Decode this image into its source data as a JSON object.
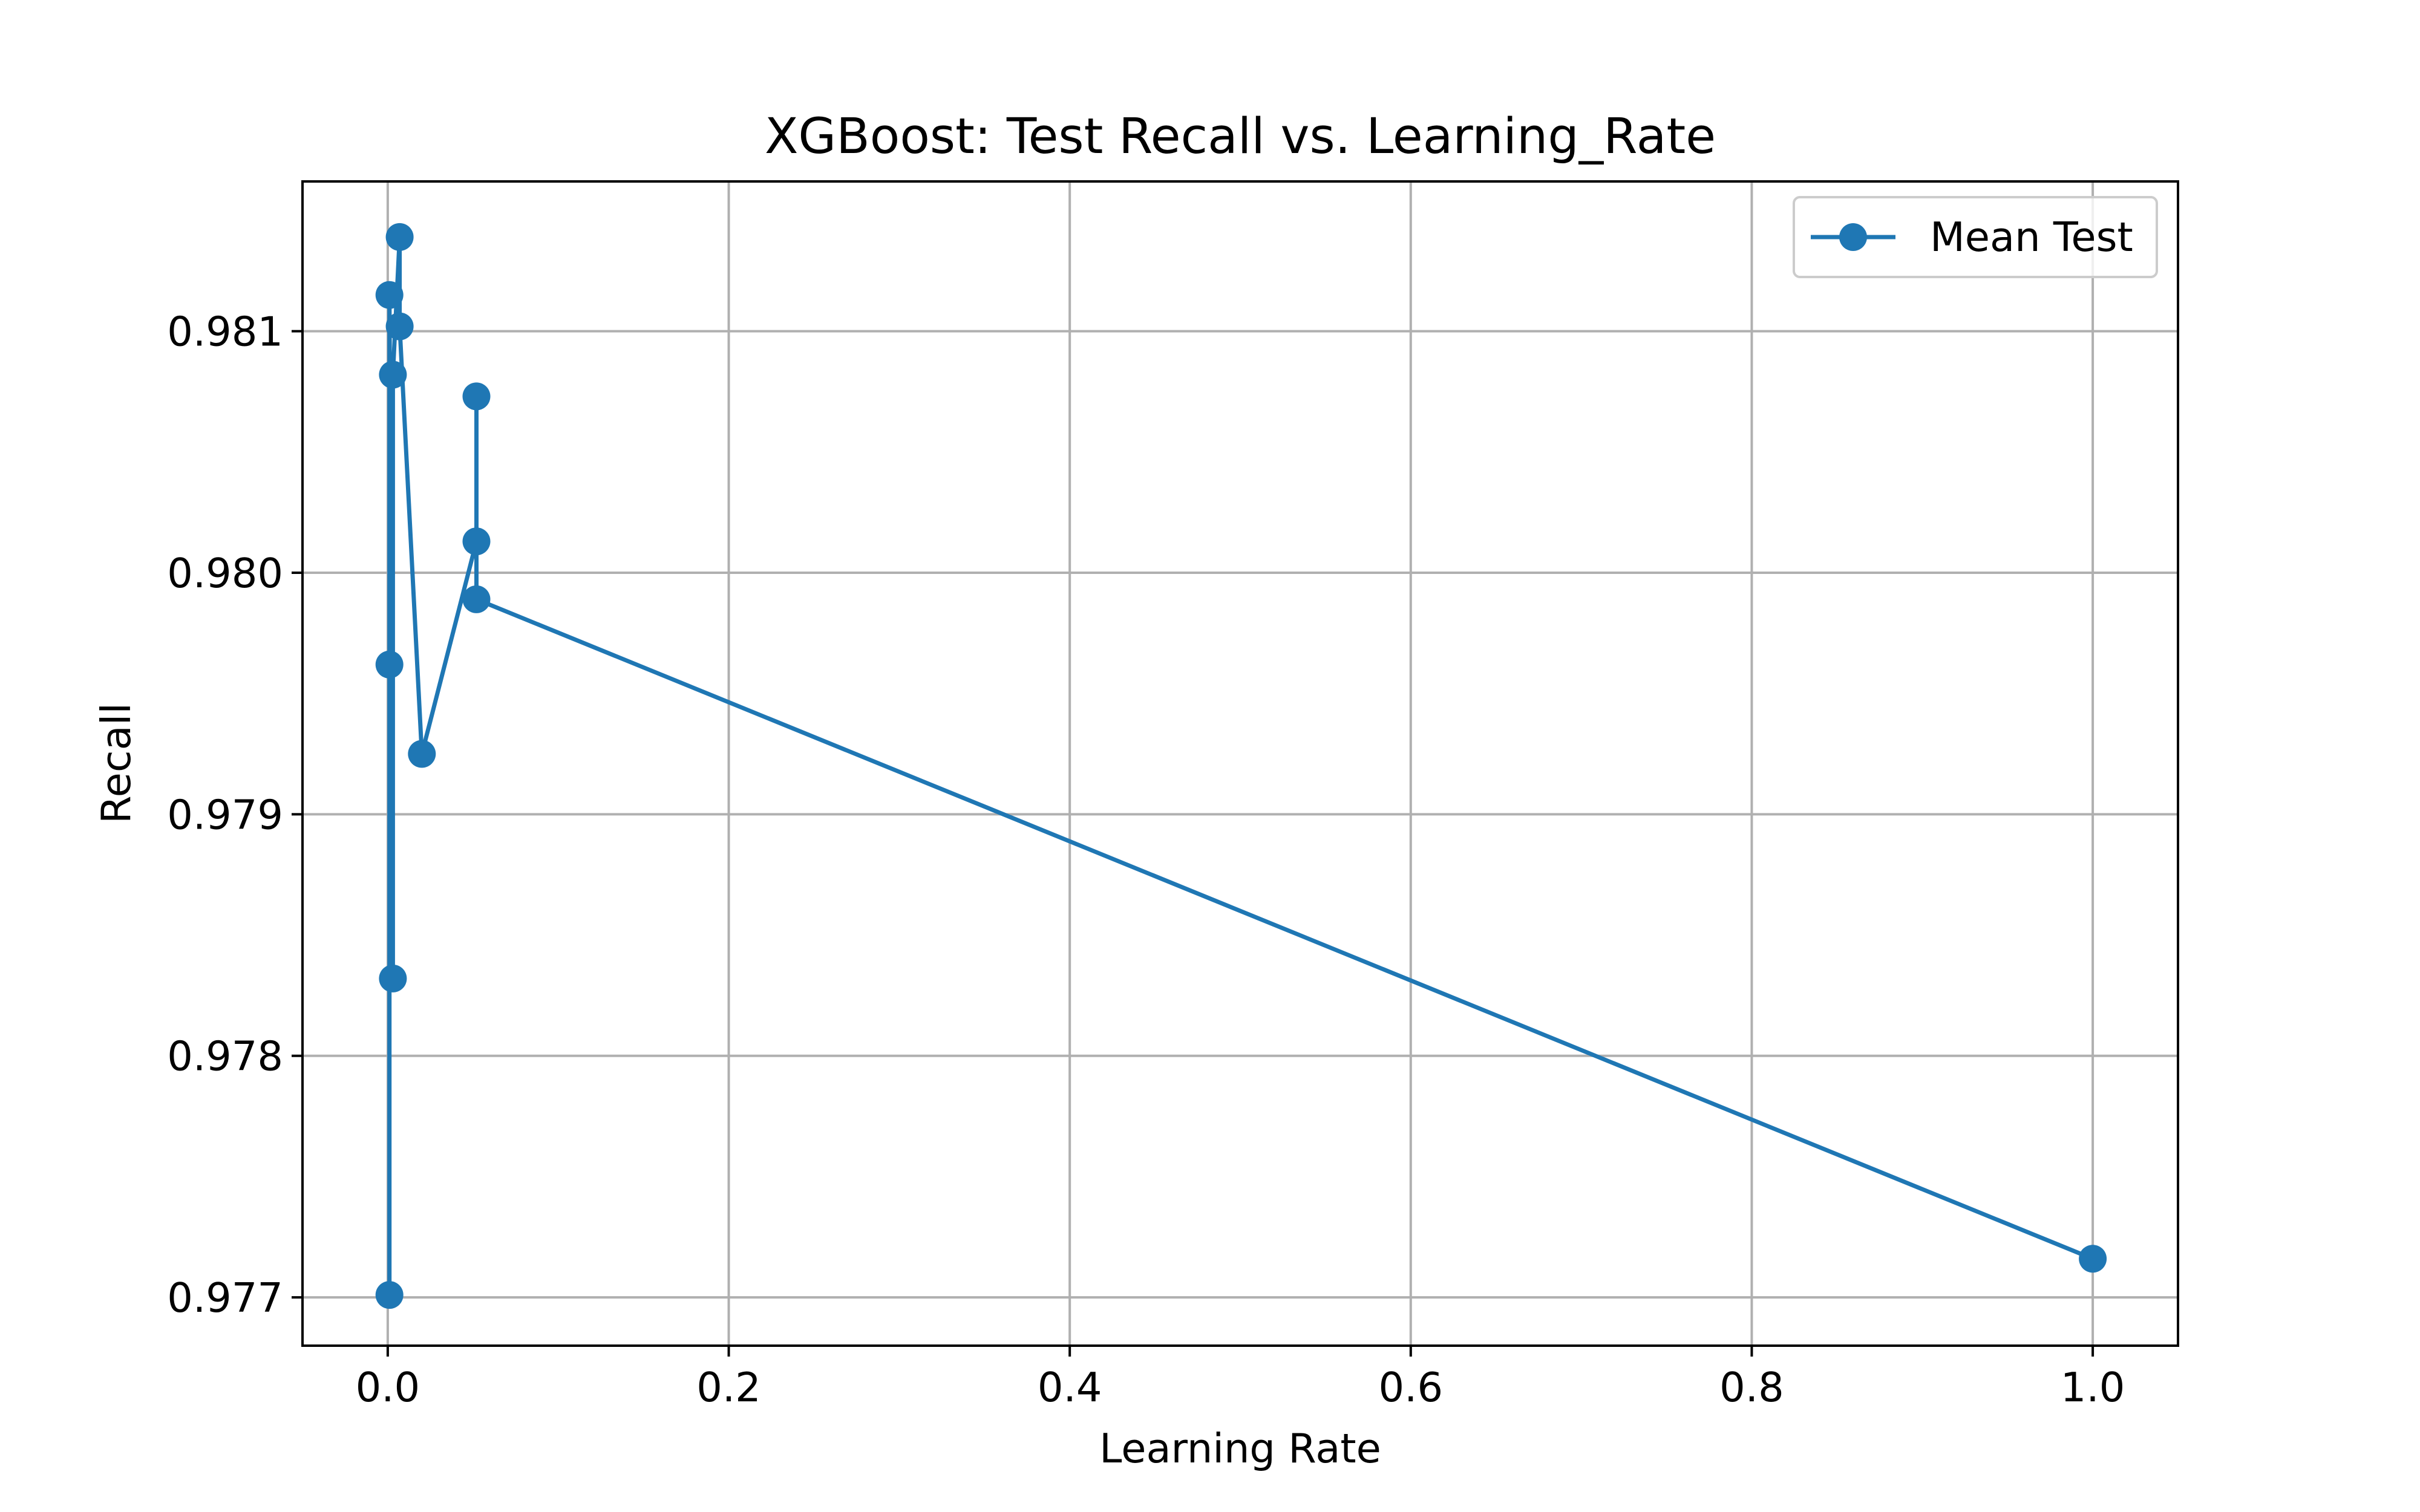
{
  "chart_data": {
    "type": "line",
    "title": "XGBoost: Test Recall vs. Learning_Rate",
    "xlabel": "Learning Rate",
    "ylabel": "Recall",
    "xlim": [
      -0.05,
      1.05
    ],
    "ylim": [
      0.9768,
      0.98162
    ],
    "xticks": [
      0.0,
      0.2,
      0.4,
      0.6,
      0.8,
      1.0
    ],
    "xtick_labels": [
      "0.0",
      "0.2",
      "0.4",
      "0.6",
      "0.8",
      "1.0"
    ],
    "yticks": [
      0.977,
      0.978,
      0.979,
      0.98,
      0.981
    ],
    "ytick_labels": [
      "0.977",
      "0.978",
      "0.979",
      "0.980",
      "0.981"
    ],
    "grid": true,
    "legend_position": "upper right",
    "series": [
      {
        "name": "Mean Test",
        "color": "#1f77b4",
        "marker": "circle",
        "x": [
          0.001,
          0.001,
          0.001,
          0.003,
          0.003,
          0.007,
          0.007,
          0.02,
          0.052,
          0.052,
          0.052,
          1.0
        ],
        "y": [
          0.97701,
          0.97962,
          0.98115,
          0.97832,
          0.98082,
          0.98139,
          0.98102,
          0.97925,
          0.98013,
          0.98073,
          0.97989,
          0.97716
        ]
      }
    ]
  }
}
